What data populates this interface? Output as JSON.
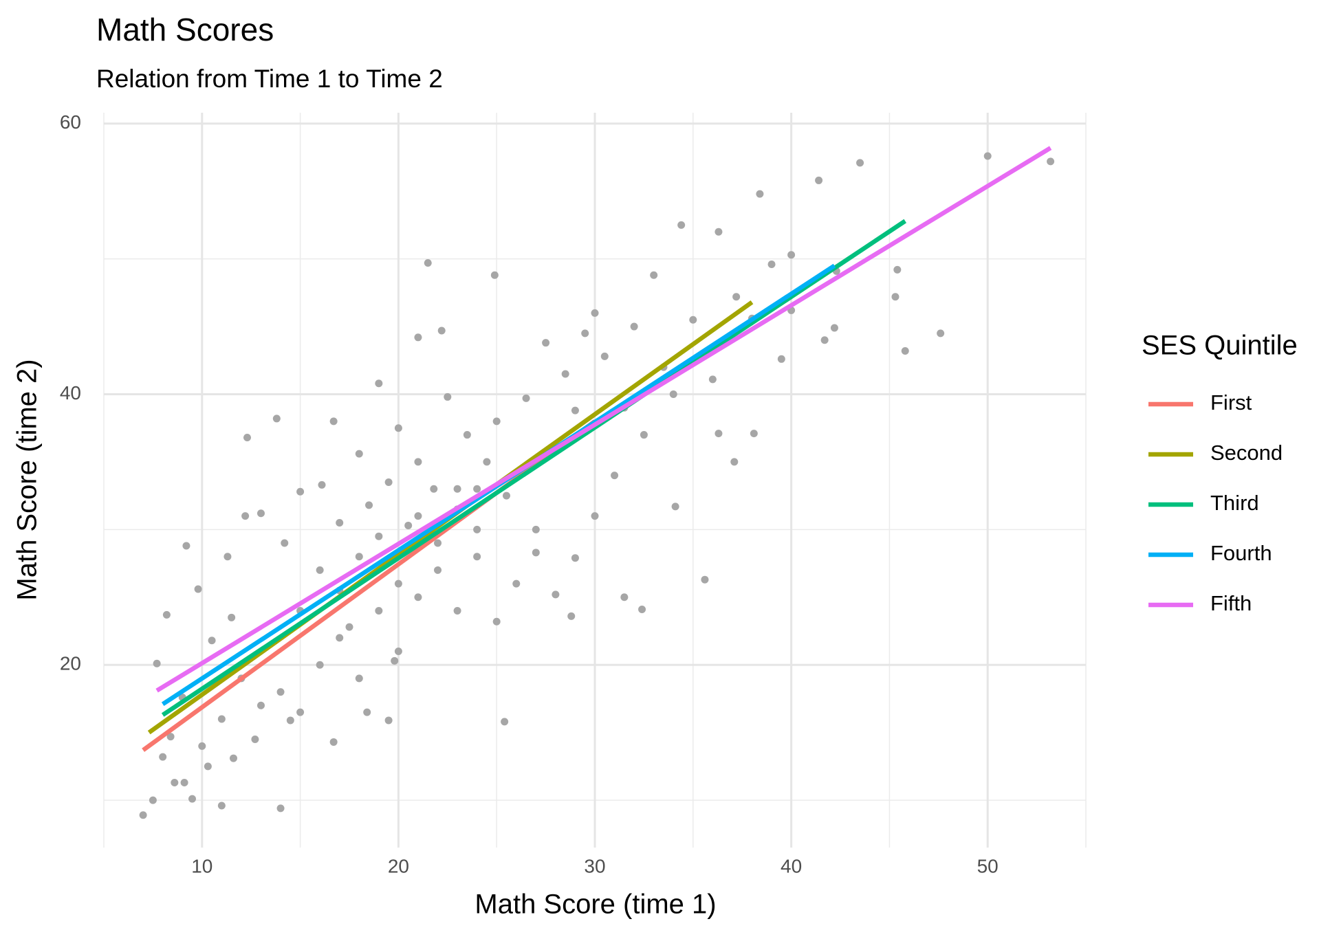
{
  "chart_data": {
    "type": "scatter",
    "title": "Math Scores",
    "subtitle": "Relation from Time 1 to Time 2",
    "x_label": "Math Score (time 1)",
    "y_label": "Math Score (time 2)",
    "legend_title": "SES Quintile",
    "legend_position": "right",
    "grid": true,
    "xlim": [
      5,
      55
    ],
    "ylim": [
      6.5,
      60.8
    ],
    "xticks": [
      10,
      20,
      30,
      40,
      50
    ],
    "yticks": [
      20,
      40,
      60
    ],
    "minor_xticks": [
      5,
      15,
      25,
      35,
      45,
      55
    ],
    "minor_yticks": [
      10,
      30,
      50
    ],
    "points": {
      "color": "#a6a6a6",
      "x": [
        50,
        53.2,
        43.5,
        41.4,
        38.4,
        34.4,
        36.3,
        47.6,
        45.8,
        45.4,
        45.3,
        35.6,
        25.4,
        7,
        14,
        11,
        21.5,
        24.9,
        11.3,
        9.2,
        13.8,
        12.3,
        16.7,
        19,
        22.2,
        21,
        32.4,
        31.5,
        28.8,
        37.1,
        38.1,
        36.3,
        34.1,
        7.5,
        8.6,
        9.1,
        9.5,
        8,
        8.4,
        7.7,
        8.2,
        9.8,
        10.5,
        11.5,
        12.2,
        13,
        14.2,
        15,
        16.1,
        17,
        18,
        18.5,
        19.5,
        20,
        20.5,
        21,
        21.8,
        22.5,
        23,
        23.5,
        24,
        24.5,
        25,
        25.5,
        26,
        26.5,
        27,
        27.5,
        28,
        28.5,
        29,
        29.5,
        30,
        30.5,
        31,
        31.5,
        32,
        32.5,
        33,
        33.5,
        34,
        35,
        36,
        37.2,
        38,
        39,
        39.5,
        40,
        40,
        42.2,
        42.3,
        41.7,
        13,
        14,
        15,
        16,
        17,
        18,
        19,
        20,
        21,
        22,
        23,
        24,
        25,
        26,
        27,
        28,
        29,
        30,
        11,
        12,
        10,
        9,
        15,
        16,
        17,
        18,
        19,
        20,
        21,
        22,
        23,
        24,
        17.5,
        19.8,
        14.5,
        16.7,
        18.4,
        19.5,
        12.7,
        10.3,
        11.6
      ],
      "y": [
        57.6,
        57.2,
        57.1,
        55.8,
        54.8,
        52.5,
        52,
        44.5,
        43.2,
        49.2,
        47.2,
        26.3,
        15.8,
        8.9,
        9.4,
        9.6,
        49.7,
        48.8,
        28,
        28.8,
        38.2,
        36.8,
        38,
        40.8,
        44.7,
        44.2,
        24.1,
        25,
        23.6,
        35,
        37.1,
        37.1,
        31.7,
        10,
        11.3,
        11.3,
        10.1,
        13.2,
        14.7,
        20.1,
        23.7,
        25.6,
        21.8,
        23.5,
        31,
        31.2,
        29,
        32.8,
        33.3,
        30.5,
        35.6,
        31.8,
        33.5,
        37.5,
        30.3,
        35,
        33,
        39.8,
        31.5,
        37,
        33,
        35,
        38,
        32.5,
        34,
        39.7,
        30,
        43.8,
        36,
        41.5,
        38.8,
        44.5,
        46,
        42.8,
        34,
        39,
        45,
        37,
        48.8,
        42,
        40,
        45.5,
        41.1,
        47.2,
        45.6,
        49.6,
        42.6,
        50.3,
        46.2,
        44.9,
        49.1,
        44,
        17,
        18,
        16.5,
        20,
        22,
        19,
        24,
        21,
        25,
        27,
        24,
        28,
        23.2,
        26,
        28.3,
        25.2,
        27.9,
        31,
        16,
        19,
        14,
        17.6,
        24,
        27,
        25.5,
        28,
        29.5,
        26,
        31,
        29,
        33,
        30,
        22.8,
        20.3,
        15.9,
        14.3,
        16.5,
        15.9,
        14.5,
        12.5,
        13.1
      ]
    },
    "lines": [
      {
        "name": "First",
        "color": "#F8766D",
        "x": [
          7.0,
          30.0
        ],
        "y": [
          13.7,
          38.0
        ]
      },
      {
        "name": "Second",
        "color": "#A3A500",
        "x": [
          7.3,
          38.0
        ],
        "y": [
          15.0,
          46.8
        ]
      },
      {
        "name": "Third",
        "color": "#00BF7D",
        "x": [
          8.0,
          45.8
        ],
        "y": [
          16.3,
          52.8
        ]
      },
      {
        "name": "Fourth",
        "color": "#00B0F6",
        "x": [
          8.0,
          42.2
        ],
        "y": [
          17.1,
          49.5
        ]
      },
      {
        "name": "Fifth",
        "color": "#E76BF3",
        "x": [
          7.7,
          53.2
        ],
        "y": [
          18.1,
          58.2
        ]
      }
    ]
  }
}
